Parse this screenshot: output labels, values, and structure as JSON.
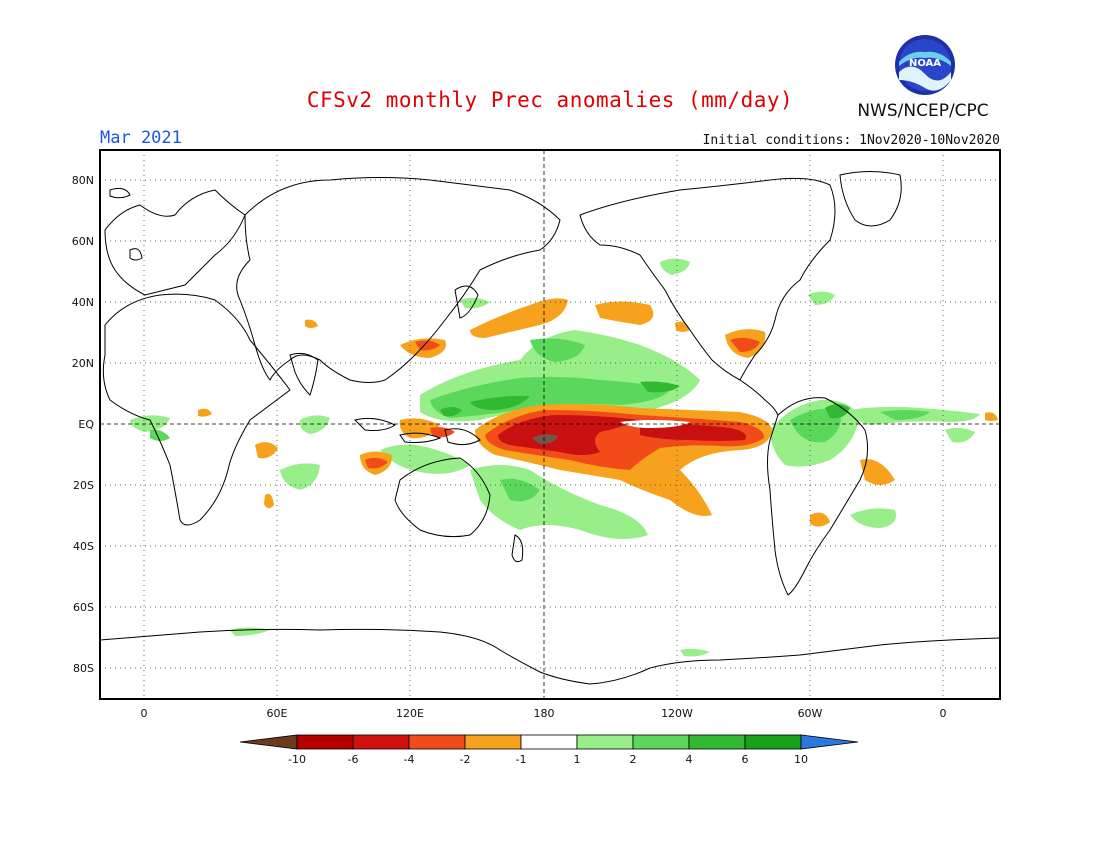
{
  "header": {
    "title": "CFSv2 monthly Prec anomalies (mm/day)",
    "valid_month": "Mar 2021",
    "initial_conditions": "Initial conditions: 1Nov2020-10Nov2020",
    "agency": "NWS/NCEP/CPC",
    "logo_text": "NOAA"
  },
  "axes": {
    "lat_labels": [
      "80N",
      "60N",
      "40N",
      "20N",
      "EQ",
      "20S",
      "40S",
      "60S",
      "80S"
    ],
    "lon_labels": [
      "0",
      "60E",
      "120E",
      "180",
      "120W",
      "60W",
      "0"
    ]
  },
  "colorbar": {
    "labels": [
      "-10",
      "-6",
      "-4",
      "-2",
      "-1",
      "1",
      "2",
      "4",
      "6",
      "10"
    ],
    "colors": [
      "#6b3a1f",
      "#b40000",
      "#d21010",
      "#f24b1a",
      "#f6a21c",
      "#ffffff",
      "#98ee88",
      "#5bd85b",
      "#32b932",
      "#18a018",
      "#2a78e0"
    ]
  },
  "colors": {
    "title": "#e00000",
    "valid_month": "#1a56e8",
    "dry_strong": "#b40000",
    "dry_moderate": "#f24b1a",
    "dry_weak": "#f6a21c",
    "wet_weak": "#98ee88",
    "wet_moderate": "#5bd85b",
    "wet_strong": "#32b932",
    "dry_extreme": "#6b5a4a"
  }
}
